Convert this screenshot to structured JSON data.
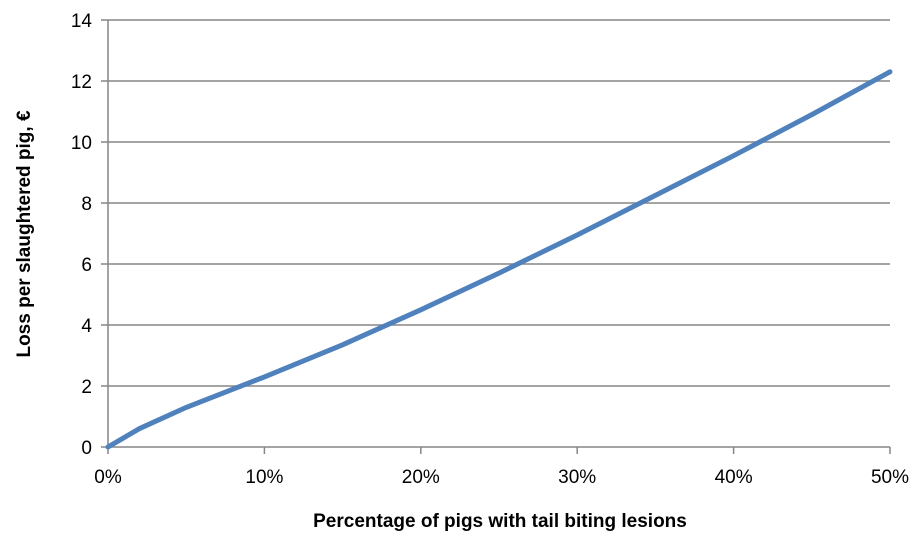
{
  "chart_data": {
    "type": "line",
    "title": "",
    "xlabel": "Percentage of pigs with tail biting lesions",
    "ylabel": "Loss per slaughtered pig, €",
    "xlim": [
      0,
      50
    ],
    "ylim": [
      0,
      14
    ],
    "x_ticks": [
      0,
      10,
      20,
      30,
      40,
      50
    ],
    "x_tick_labels": [
      "0%",
      "10%",
      "20%",
      "30%",
      "40%",
      "50%"
    ],
    "y_ticks": [
      0,
      2,
      4,
      6,
      8,
      10,
      12,
      14
    ],
    "y_tick_labels": [
      "0",
      "2",
      "4",
      "6",
      "8",
      "10",
      "12",
      "14"
    ],
    "grid": "horizontal",
    "legend": "none",
    "series": [
      {
        "color": "#4f81bd",
        "x": [
          0,
          2,
          5,
          10,
          15,
          20,
          25,
          30,
          35,
          40,
          45,
          50
        ],
        "y": [
          0,
          0.6,
          1.3,
          2.3,
          3.35,
          4.5,
          5.7,
          6.95,
          8.25,
          9.55,
          10.9,
          12.3
        ]
      }
    ]
  },
  "colors": {
    "line": "#4f81bd",
    "grid": "#868686",
    "axis": "#868686"
  }
}
